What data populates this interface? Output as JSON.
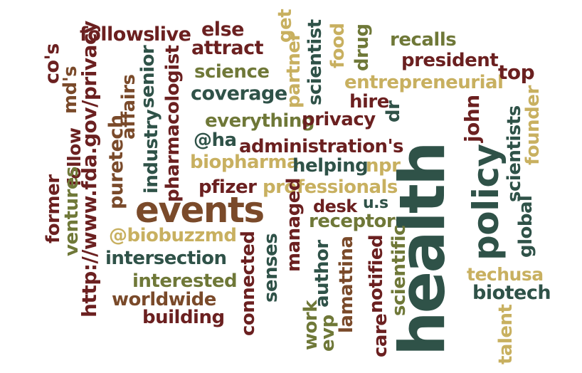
{
  "palette": {
    "dark_red": "#6b2020",
    "teal": "#2f5248",
    "brown": "#7a4a2a",
    "olive": "#6f7838",
    "gold": "#c8b060"
  },
  "words": [
    {
      "text": "health",
      "color": "#2f5248"
    },
    {
      "text": "events",
      "color": "#7a4a2a"
    },
    {
      "text": "policy",
      "color": "#2f5248"
    },
    {
      "text": "follows",
      "color": "#6b2020"
    },
    {
      "text": "live",
      "color": "#6b2020"
    },
    {
      "text": "else",
      "color": "#6b2020"
    },
    {
      "text": "attract",
      "color": "#6b2020"
    },
    {
      "text": "science",
      "color": "#6f7838"
    },
    {
      "text": "coverage",
      "color": "#2f5248"
    },
    {
      "text": "everything",
      "color": "#6f7838"
    },
    {
      "text": "privacy",
      "color": "#6b2020"
    },
    {
      "text": "@ha",
      "color": "#2f5248"
    },
    {
      "text": "administration's",
      "color": "#6b2020"
    },
    {
      "text": "biopharma",
      "color": "#c8b060"
    },
    {
      "text": "helping",
      "color": "#2f5248"
    },
    {
      "text": "npr",
      "color": "#c8b060"
    },
    {
      "text": "pfizer",
      "color": "#6b2020"
    },
    {
      "text": "professionals",
      "color": "#c8b060"
    },
    {
      "text": "desk",
      "color": "#6b2020"
    },
    {
      "text": "u.s",
      "color": "#2f5248"
    },
    {
      "text": "receptors",
      "color": "#6f7838"
    },
    {
      "text": "@biobuzzmd",
      "color": "#c8b060"
    },
    {
      "text": "intersection",
      "color": "#2f5248"
    },
    {
      "text": "interested",
      "color": "#6f7838"
    },
    {
      "text": "worldwide",
      "color": "#7a4a2a"
    },
    {
      "text": "building",
      "color": "#6b2020"
    },
    {
      "text": "recalls",
      "color": "#6f7838"
    },
    {
      "text": "president",
      "color": "#6b2020"
    },
    {
      "text": "entrepreneurial",
      "color": "#c8b060"
    },
    {
      "text": "top",
      "color": "#6b2020"
    },
    {
      "text": "hire",
      "color": "#6b2020"
    },
    {
      "text": "techusa",
      "color": "#c8b060"
    },
    {
      "text": "biotech",
      "color": "#2f5248"
    },
    {
      "text": "co's",
      "color": "#6b2020"
    },
    {
      "text": "md's",
      "color": "#7a4a2a"
    },
    {
      "text": "http://www.fda.gov/privacy",
      "color": "#6b2020"
    },
    {
      "text": "follow",
      "color": "#6b2020"
    },
    {
      "text": "former",
      "color": "#6b2020"
    },
    {
      "text": "ventures",
      "color": "#6f7838"
    },
    {
      "text": "affairs",
      "color": "#7a4a2a"
    },
    {
      "text": "puretech",
      "color": "#7a4a2a"
    },
    {
      "text": "senior",
      "color": "#2f5248"
    },
    {
      "text": "industry",
      "color": "#2f5248"
    },
    {
      "text": "pharmacologist",
      "color": "#6b2020"
    },
    {
      "text": "get",
      "color": "#c8b060"
    },
    {
      "text": "partner",
      "color": "#c8b060"
    },
    {
      "text": "scientist",
      "color": "#2f5248"
    },
    {
      "text": "food",
      "color": "#c8b060"
    },
    {
      "text": "drug",
      "color": "#6f7838"
    },
    {
      "text": "dr",
      "color": "#2f5248"
    },
    {
      "text": "john",
      "color": "#6b2020"
    },
    {
      "text": "scientists",
      "color": "#2f5248"
    },
    {
      "text": "founder",
      "color": "#c8b060"
    },
    {
      "text": "global",
      "color": "#2f5248"
    },
    {
      "text": "talent",
      "color": "#c8b060"
    },
    {
      "text": "managed",
      "color": "#6b2020"
    },
    {
      "text": "senses",
      "color": "#2f5248"
    },
    {
      "text": "connected",
      "color": "#6b2020"
    },
    {
      "text": "author",
      "color": "#2f5248"
    },
    {
      "text": "work",
      "color": "#6f7838"
    },
    {
      "text": "evp",
      "color": "#6f7838"
    },
    {
      "text": "lamattina",
      "color": "#7a4a2a"
    },
    {
      "text": "notified",
      "color": "#6b2020"
    },
    {
      "text": "care",
      "color": "#6b2020"
    },
    {
      "text": "scientific",
      "color": "#6f7838"
    }
  ]
}
